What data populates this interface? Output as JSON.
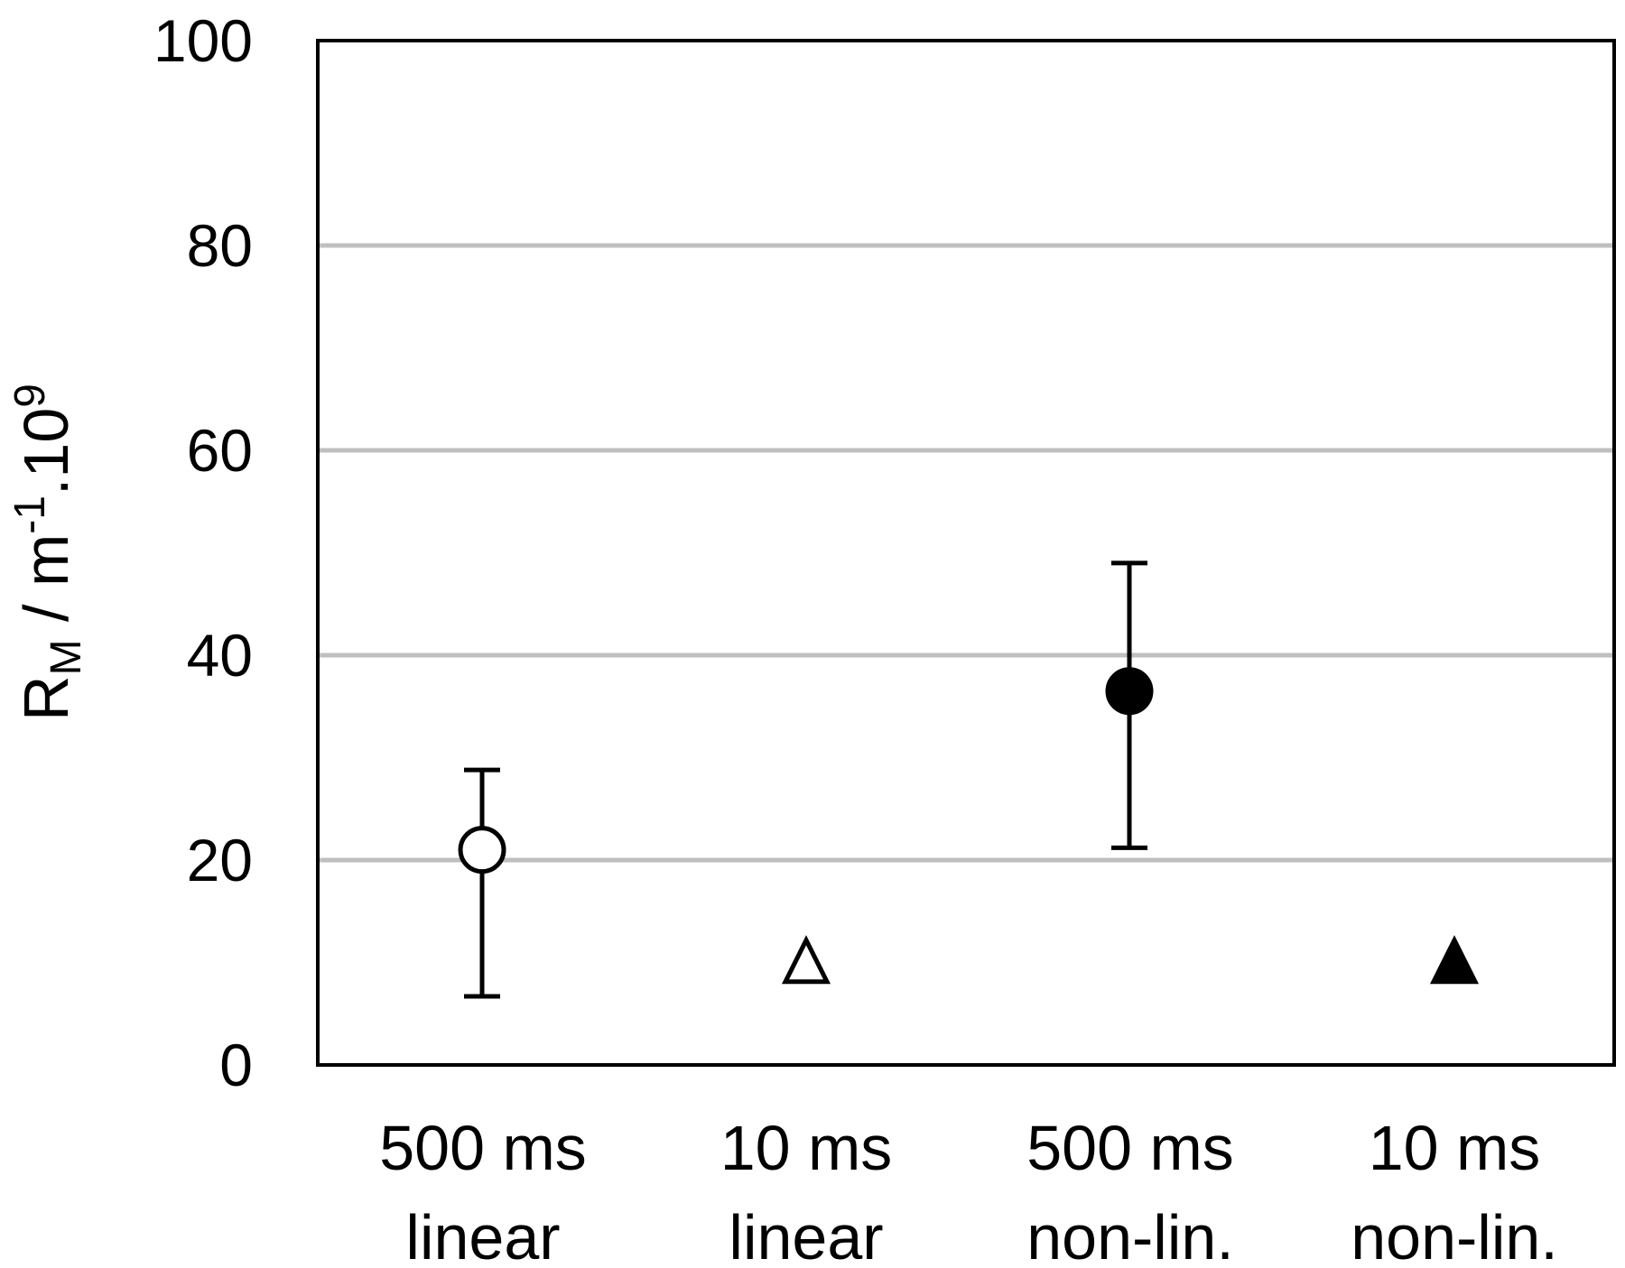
{
  "chart_data": {
    "type": "scatter",
    "ylabel_main": "R",
    "ylabel_sub": "M",
    "ylabel_mid": " / m",
    "ylabel_sup1": "-1",
    "ylabel_tail": ".10",
    "ylabel_sup2": "9",
    "ylim": [
      0,
      100
    ],
    "yticks": [
      0,
      20,
      40,
      60,
      80,
      100
    ],
    "grid": true,
    "categories": [
      {
        "line1": "500 ms",
        "line2": "linear"
      },
      {
        "line1": "10 ms",
        "line2": "linear"
      },
      {
        "line1": "500 ms",
        "line2": "non-lin."
      },
      {
        "line1": "10 ms",
        "line2": "non-lin."
      }
    ],
    "points": [
      {
        "value": 21,
        "err_low": 6.7,
        "err_high": 28.8,
        "marker": "circle",
        "filled": false
      },
      {
        "value": 9.8,
        "err_low": null,
        "err_high": null,
        "marker": "triangle",
        "filled": false
      },
      {
        "value": 36.5,
        "err_low": 21.2,
        "err_high": 49,
        "marker": "circle",
        "filled": true
      },
      {
        "value": 9.8,
        "err_low": null,
        "err_high": null,
        "marker": "triangle",
        "filled": true
      }
    ]
  }
}
